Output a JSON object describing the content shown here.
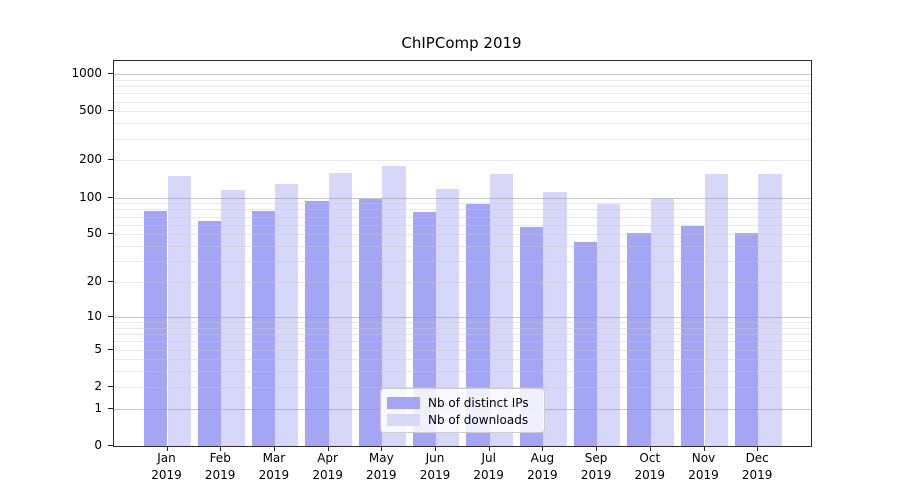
{
  "chart_data": {
    "type": "bar",
    "title": "ChIPComp 2019",
    "categories": [
      "Jan",
      "Feb",
      "Mar",
      "Apr",
      "May",
      "Jun",
      "Jul",
      "Aug",
      "Sep",
      "Oct",
      "Nov",
      "Dec"
    ],
    "year_label": "2019",
    "series": [
      {
        "name": "Nb of distinct IPs",
        "color": "#a5a5f5",
        "values": [
          78,
          64,
          78,
          94,
          98,
          76,
          88,
          57,
          43,
          51,
          59,
          51
        ]
      },
      {
        "name": "Nb of downloads",
        "color": "#d7d7fa",
        "values": [
          150,
          115,
          130,
          157,
          181,
          117,
          154,
          110,
          88,
          98,
          155,
          154
        ]
      }
    ],
    "yscale": "log1p",
    "ytick_labels": [
      1000,
      500,
      200,
      100,
      50,
      20,
      10,
      5,
      2,
      1,
      0
    ],
    "grid_minor_values": [
      2,
      3,
      4,
      5,
      6,
      7,
      8,
      9,
      20,
      30,
      40,
      50,
      60,
      70,
      80,
      90,
      200,
      300,
      400,
      500,
      600,
      700,
      800,
      900
    ],
    "grid_major_values": [
      1,
      10,
      100,
      1000
    ],
    "ylim": [
      0,
      1000
    ],
    "xlabel": "",
    "ylabel": "",
    "grid": "horizontal",
    "legend_position": "lower center",
    "colors": {
      "background": "#ffffff",
      "bar_ips": "#a5a5f5",
      "bar_downloads": "#d7d7fa",
      "grid_major": "#c9c9c9",
      "grid_minor": "#e8e8e8",
      "spine": "#2a2a2a",
      "text": "#000000"
    }
  }
}
